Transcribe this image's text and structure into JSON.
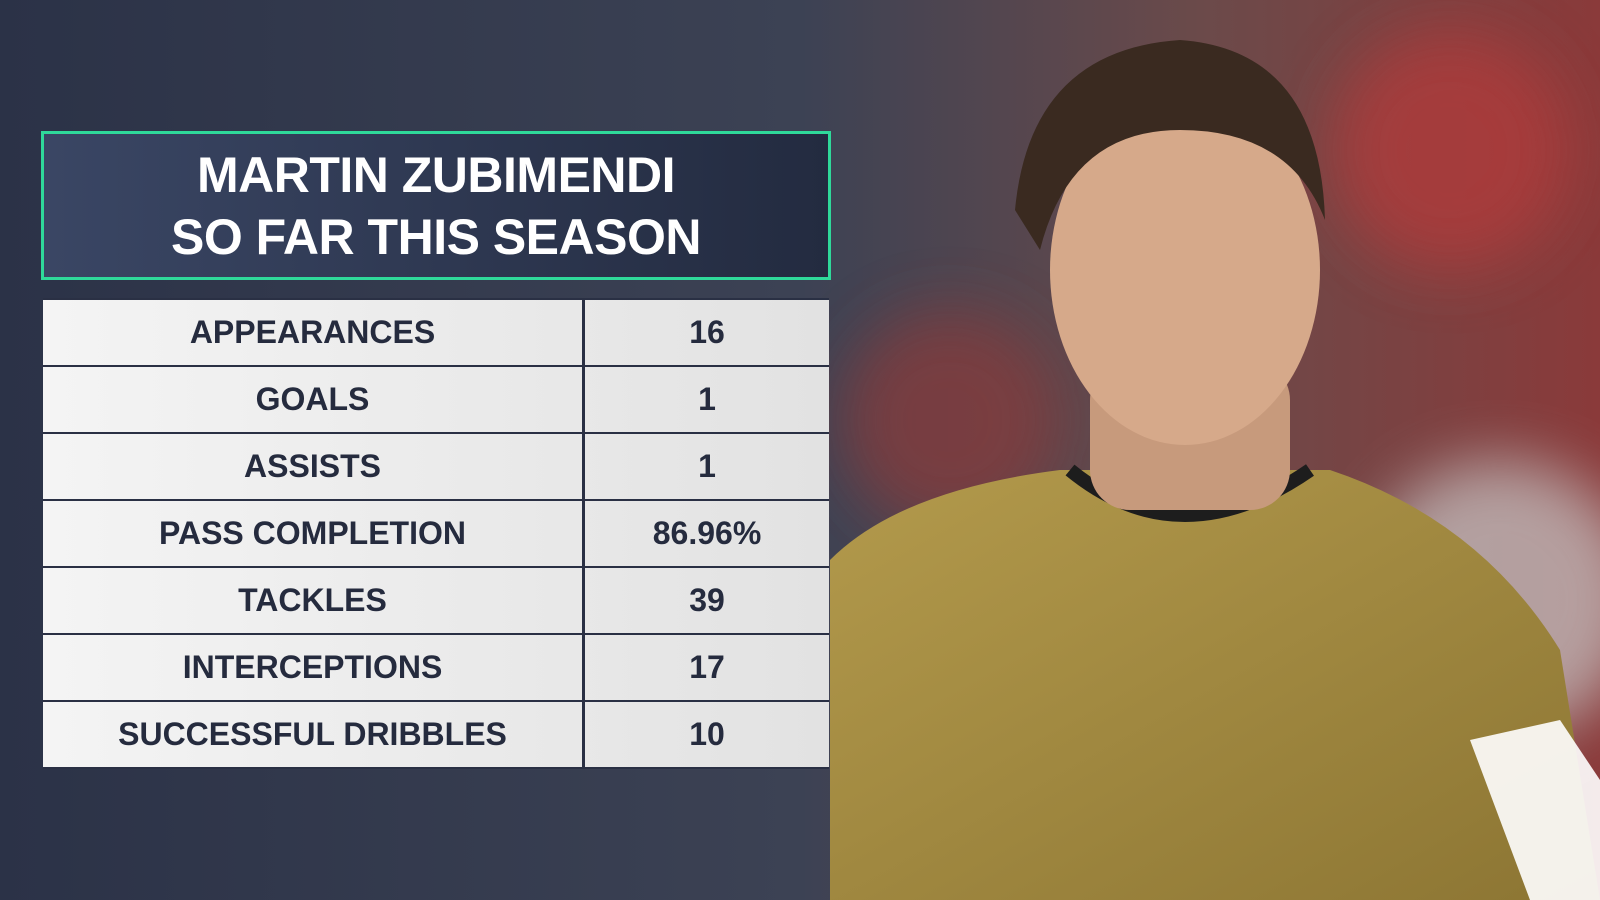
{
  "header": {
    "title_lines": [
      "MARTIN ZUBIMENDI",
      "SO FAR THIS SEASON"
    ]
  },
  "table": {
    "rows": [
      [
        "APPEARANCES",
        16
      ],
      [
        "GOALS",
        1
      ],
      [
        "ASSISTS",
        1
      ],
      [
        "PASS COMPLETION",
        "86.96%"
      ],
      [
        "TACKLES",
        39
      ],
      [
        "INTERCEPTIONS",
        17
      ],
      [
        "SUCCESSFUL DRIBBLES",
        10
      ]
    ]
  }
}
